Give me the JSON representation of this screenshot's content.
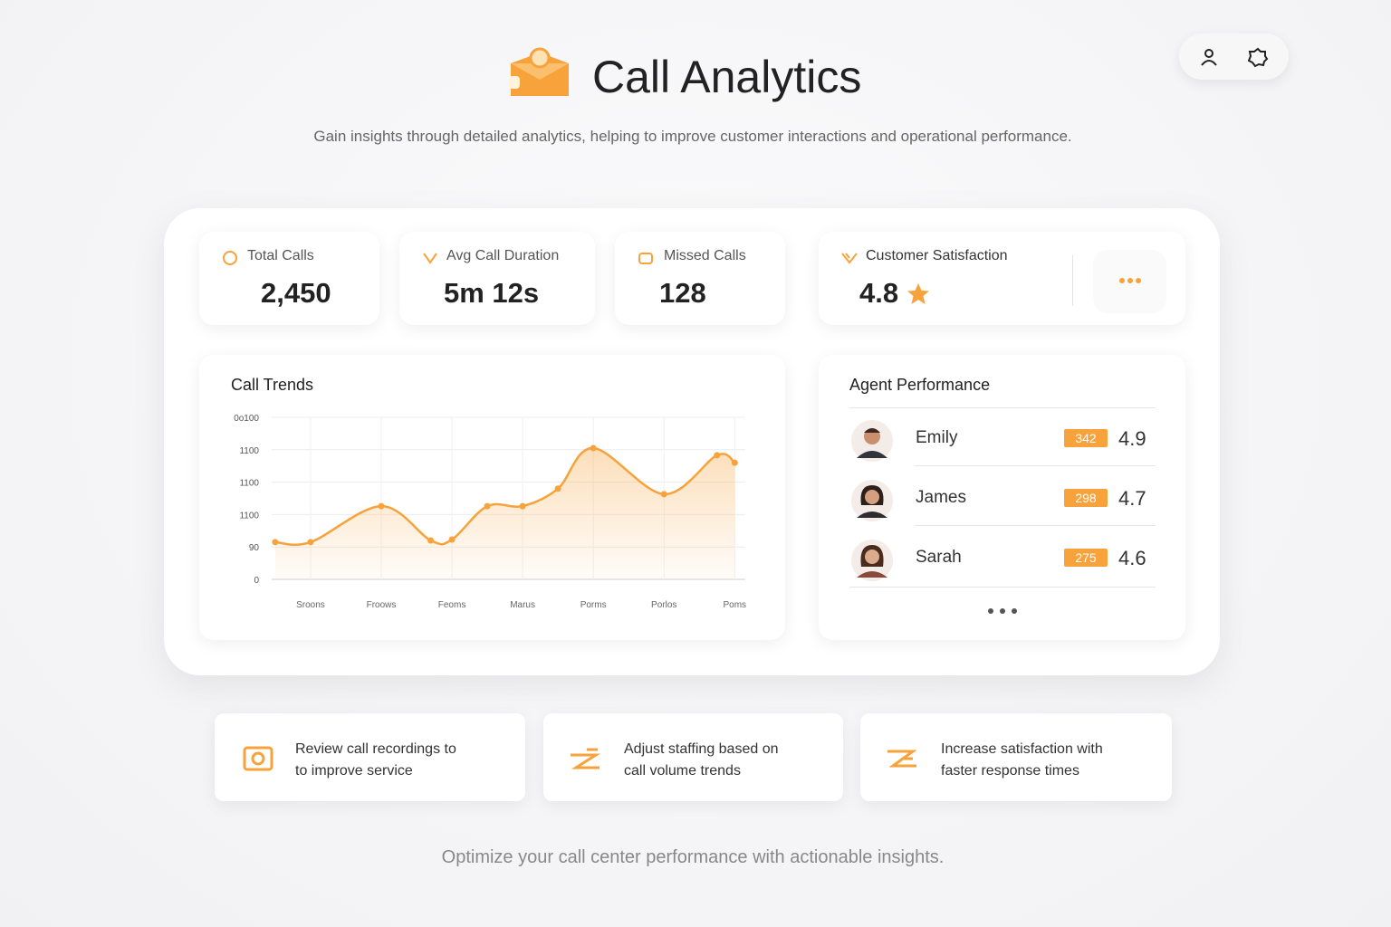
{
  "header": {
    "title": "Call Analytics",
    "subtitle": "Gain insights through detailed analytics, helping to improve customer interactions and operational performance."
  },
  "kpis": [
    {
      "label": "Total Calls",
      "value": "2,450"
    },
    {
      "label": "Avg Call Duration",
      "value": "5m 12s"
    },
    {
      "label": "Missed Calls",
      "value": "128"
    },
    {
      "label": "Customer Satisfaction",
      "value": "4.8"
    }
  ],
  "chart_data": {
    "type": "line",
    "title": "Call Trends",
    "color": "#f7a23b",
    "grid": true,
    "x": [
      0.5,
      1,
      2,
      2.7,
      3,
      3.5,
      4,
      4.5,
      5,
      6,
      6.75,
      7
    ],
    "values": [
      1.15,
      1.15,
      2.26,
      1.2,
      1.23,
      2.26,
      2.26,
      2.8,
      4.05,
      2.63,
      3.83,
      3.6
    ],
    "xlim": [
      0.45,
      7.15
    ],
    "xticks": [
      {
        "value": 1,
        "label": "Sroons"
      },
      {
        "value": 2,
        "label": "Froows"
      },
      {
        "value": 3,
        "label": "Feoms"
      },
      {
        "value": 4,
        "label": "Marus"
      },
      {
        "value": 5,
        "label": "Porms"
      },
      {
        "value": 6,
        "label": "Porlos"
      },
      {
        "value": 7,
        "label": "Poms"
      }
    ],
    "ylim": [
      0,
      5
    ],
    "yticks": [
      0,
      {
        "value": 1,
        "label": "90"
      },
      {
        "value": 2,
        "label": "1100"
      },
      {
        "value": 3,
        "label": "1100"
      },
      {
        "value": 4,
        "label": "1100"
      },
      {
        "value": 5,
        "label": "0o100"
      }
    ]
  },
  "agents": {
    "title": "Agent Performance",
    "rows": [
      {
        "name": "Emily",
        "calls": "342",
        "rating": "4.9"
      },
      {
        "name": "James",
        "calls": "298",
        "rating": "4.7"
      },
      {
        "name": "Sarah",
        "calls": "275",
        "rating": "4.6"
      }
    ]
  },
  "tips": [
    {
      "lines": [
        "Review call recordings to",
        "to improve service"
      ]
    },
    {
      "lines": [
        "Adjust staffing based on",
        "call volume trends"
      ]
    },
    {
      "lines": [
        "Increase satisfaction with",
        "faster response times"
      ]
    }
  ],
  "footer": "Optimize your call center performance with actionable insights."
}
